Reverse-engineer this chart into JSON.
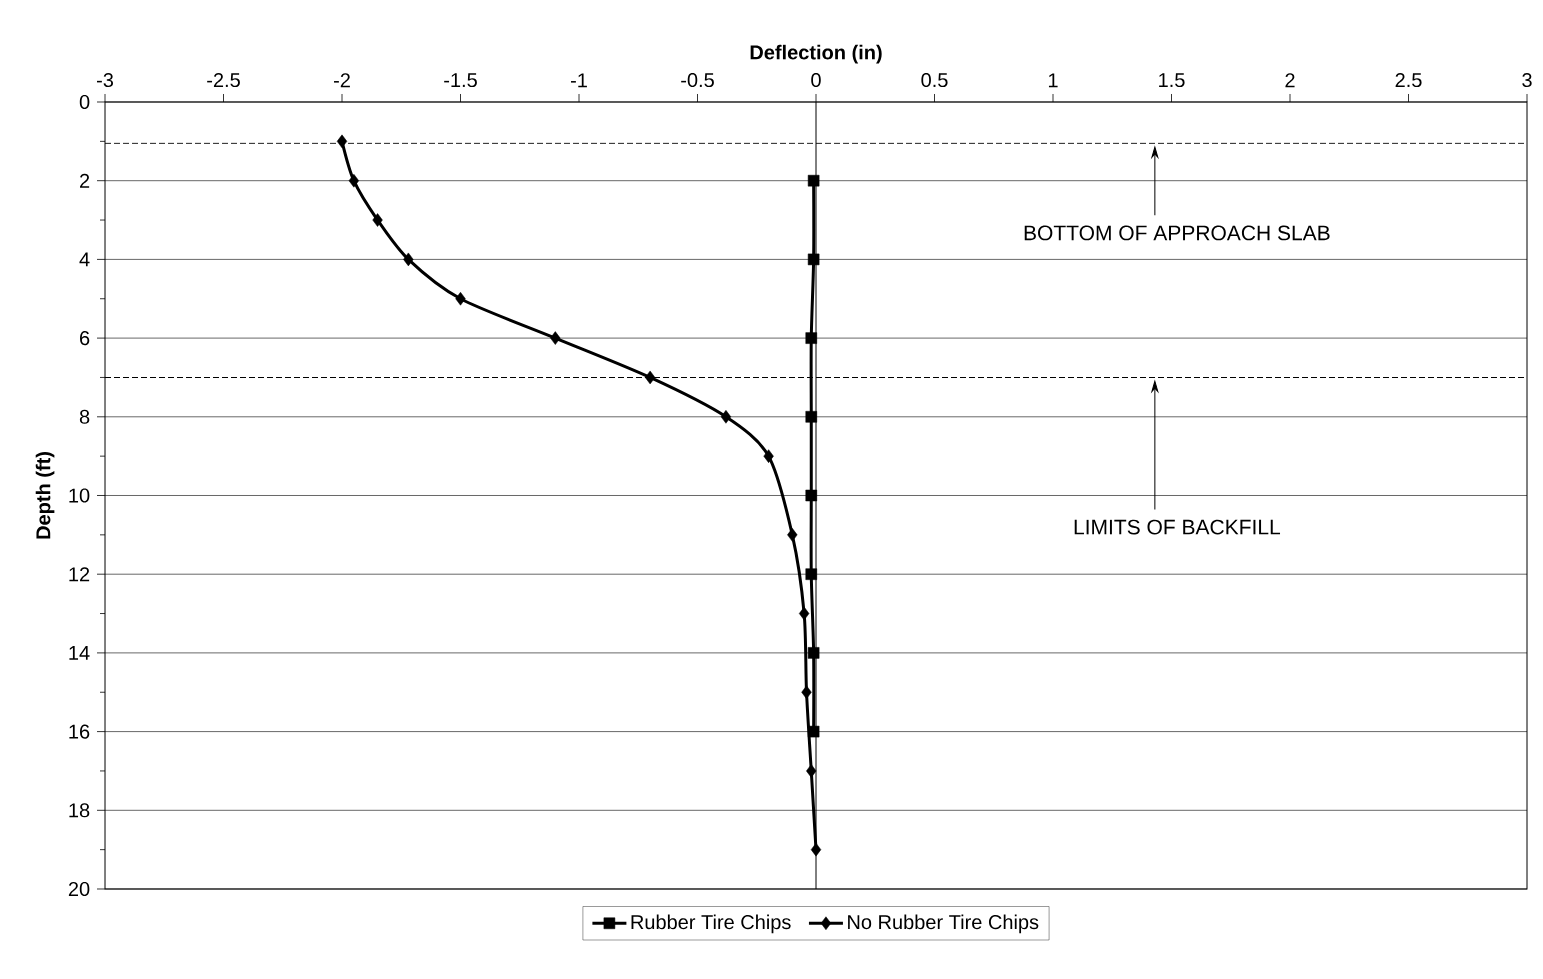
{
  "chart_data": {
    "type": "line",
    "xlabel": "Deflection  (in)",
    "ylabel": "Depth  (ft)",
    "xlim": [
      -3,
      3
    ],
    "xticks": [
      -3,
      -2.5,
      -2,
      -1.5,
      -1,
      -0.5,
      0,
      0.5,
      1,
      1.5,
      2,
      2.5,
      3
    ],
    "ylim": [
      20,
      0
    ],
    "yticks": [
      0,
      2,
      4,
      6,
      8,
      10,
      12,
      14,
      16,
      18,
      20
    ],
    "grid": "y",
    "legend": "bottom",
    "line_style": "solid",
    "series": [
      {
        "name": "Rubber Tire Chips",
        "color": "#000000",
        "marker": "square",
        "x": [
          -0.01,
          -0.01,
          -0.02,
          -0.02,
          -0.02,
          -0.02,
          -0.01,
          -0.01
        ],
        "values": [
          2,
          4,
          6,
          8,
          10,
          12,
          14,
          16
        ]
      },
      {
        "name": "No Rubber Tire Chips",
        "color": "#000000",
        "marker": "diamond",
        "x": [
          -2.0,
          -1.95,
          -1.85,
          -1.72,
          -1.5,
          -1.1,
          -0.7,
          -0.38,
          -0.2,
          -0.1,
          -0.05,
          -0.04,
          -0.02,
          0
        ],
        "values": [
          1,
          2,
          3,
          4,
          5,
          6,
          7,
          8,
          9,
          11,
          13,
          15,
          17,
          19
        ]
      }
    ],
    "ref_lines": [
      {
        "axis": "x",
        "value": 0,
        "line_style": "solid",
        "color": "#000000"
      },
      {
        "axis": "y",
        "value": 1.05,
        "line_style": "dashed",
        "color": "#000000"
      },
      {
        "axis": "y",
        "value": 7,
        "line_style": "dashed",
        "color": "#000000"
      }
    ],
    "annotations": [
      "BOTTOM OF APPROACH SLAB",
      "LIMITS OF BACKFILL"
    ]
  }
}
